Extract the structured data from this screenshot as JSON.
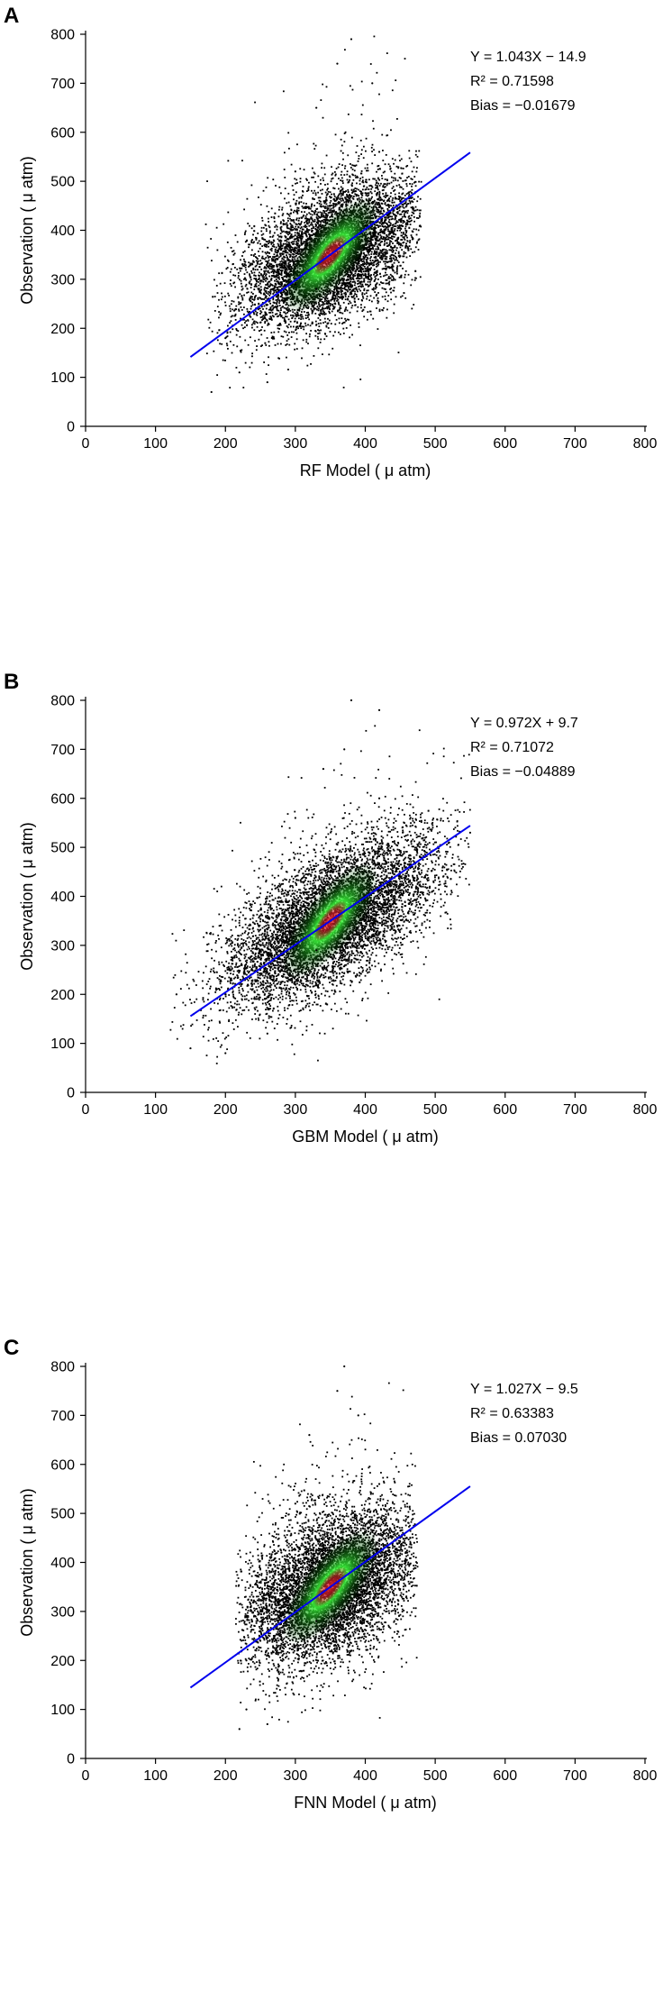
{
  "panels": [
    {
      "letter": "A",
      "stats": [
        "Y = 1.043X − 14.9",
        "R² = 0.71598",
        "Bias = −0.01679"
      ]
    },
    {
      "letter": "B",
      "stats": [
        "Y = 0.972X + 9.7",
        "R² = 0.71072",
        "Bias = −0.04889"
      ]
    },
    {
      "letter": "C",
      "stats": [
        "Y = 1.027X − 9.5",
        "R² = 0.63383",
        "Bias = 0.07030"
      ]
    }
  ],
  "colors": {
    "points": "#000000",
    "density_low": "#0a5a0a",
    "density_mid": "#3cff3c",
    "density_high": "#e0202a",
    "fit_line": "#0000ee"
  },
  "chart_data": [
    {
      "type": "scatter",
      "title": "",
      "xlabel": "RF Model ( μ atm)",
      "ylabel": "Observation ( μ atm)",
      "xlim": [
        0,
        800
      ],
      "ylim": [
        0,
        800
      ],
      "xticks": [
        0,
        100,
        200,
        300,
        400,
        500,
        600,
        700,
        800
      ],
      "yticks": [
        0,
        100,
        200,
        300,
        400,
        500,
        600,
        700,
        800
      ],
      "density_colored": true,
      "point_cloud": {
        "center": [
          350,
          350
        ],
        "x_range": [
          170,
          480
        ],
        "y_range": [
          55,
          800
        ]
      },
      "fit_line": {
        "slope": 1.043,
        "intercept": -14.9,
        "x_range": [
          150,
          550
        ]
      },
      "series": [
        {
          "values": [
            [
              350,
              350
            ],
            [
              300,
              290
            ],
            [
              400,
              410
            ],
            [
              250,
              230
            ],
            [
              450,
              460
            ],
            [
              200,
              180
            ],
            [
              470,
              440
            ],
            [
              380,
              790
            ],
            [
              360,
              740
            ],
            [
              330,
              650
            ],
            [
              410,
              700
            ],
            [
              220,
              110
            ],
            [
              260,
              90
            ],
            [
              180,
              70
            ],
            [
              300,
              520
            ],
            [
              420,
              560
            ],
            [
              280,
              400
            ],
            [
              240,
              320
            ],
            [
              460,
              420
            ],
            [
              330,
              280
            ]
          ]
        }
      ]
    },
    {
      "type": "scatter",
      "title": "",
      "xlabel": "GBM Model ( μ atm)",
      "ylabel": "Observation ( μ atm)",
      "xlim": [
        0,
        800
      ],
      "ylim": [
        0,
        800
      ],
      "xticks": [
        0,
        100,
        200,
        300,
        400,
        500,
        600,
        700,
        800
      ],
      "yticks": [
        0,
        100,
        200,
        300,
        400,
        500,
        600,
        700,
        800
      ],
      "density_colored": true,
      "point_cloud": {
        "center": [
          350,
          350
        ],
        "x_range": [
          120,
          550
        ],
        "y_range": [
          55,
          800
        ]
      },
      "fit_line": {
        "slope": 0.972,
        "intercept": 9.7,
        "x_range": [
          150,
          550
        ]
      },
      "series": [
        {
          "values": [
            [
              350,
              350
            ],
            [
              300,
              300
            ],
            [
              400,
              400
            ],
            [
              250,
              250
            ],
            [
              450,
              440
            ],
            [
              200,
              200
            ],
            [
              130,
              200
            ],
            [
              150,
              90
            ],
            [
              520,
              510
            ],
            [
              550,
              530
            ],
            [
              380,
              800
            ],
            [
              370,
              700
            ],
            [
              340,
              660
            ],
            [
              420,
              780
            ],
            [
              260,
              120
            ],
            [
              200,
              80
            ],
            [
              300,
              560
            ],
            [
              420,
              600
            ],
            [
              330,
              290
            ],
            [
              480,
              420
            ]
          ]
        }
      ]
    },
    {
      "type": "scatter",
      "title": "",
      "xlabel": "FNN Model ( μ atm)",
      "ylabel": "Observation ( μ atm)",
      "xlim": [
        0,
        800
      ],
      "ylim": [
        0,
        800
      ],
      "xticks": [
        0,
        100,
        200,
        300,
        400,
        500,
        600,
        700,
        800
      ],
      "yticks": [
        0,
        100,
        200,
        300,
        400,
        500,
        600,
        700,
        800
      ],
      "density_colored": true,
      "point_cloud": {
        "center": [
          350,
          350
        ],
        "x_range": [
          215,
          475
        ],
        "y_range": [
          55,
          800
        ]
      },
      "fit_line": {
        "slope": 1.027,
        "intercept": -9.5,
        "x_range": [
          150,
          550
        ]
      },
      "series": [
        {
          "values": [
            [
              350,
              350
            ],
            [
              300,
              300
            ],
            [
              400,
              410
            ],
            [
              250,
              240
            ],
            [
              450,
              450
            ],
            [
              230,
              200
            ],
            [
              460,
              420
            ],
            [
              370,
              800
            ],
            [
              360,
              750
            ],
            [
              320,
              660
            ],
            [
              390,
              700
            ],
            [
              230,
              100
            ],
            [
              260,
              70
            ],
            [
              220,
              60
            ],
            [
              300,
              520
            ],
            [
              420,
              560
            ],
            [
              280,
              420
            ],
            [
              240,
              330
            ],
            [
              470,
              440
            ],
            [
              330,
              280
            ]
          ]
        }
      ]
    }
  ]
}
